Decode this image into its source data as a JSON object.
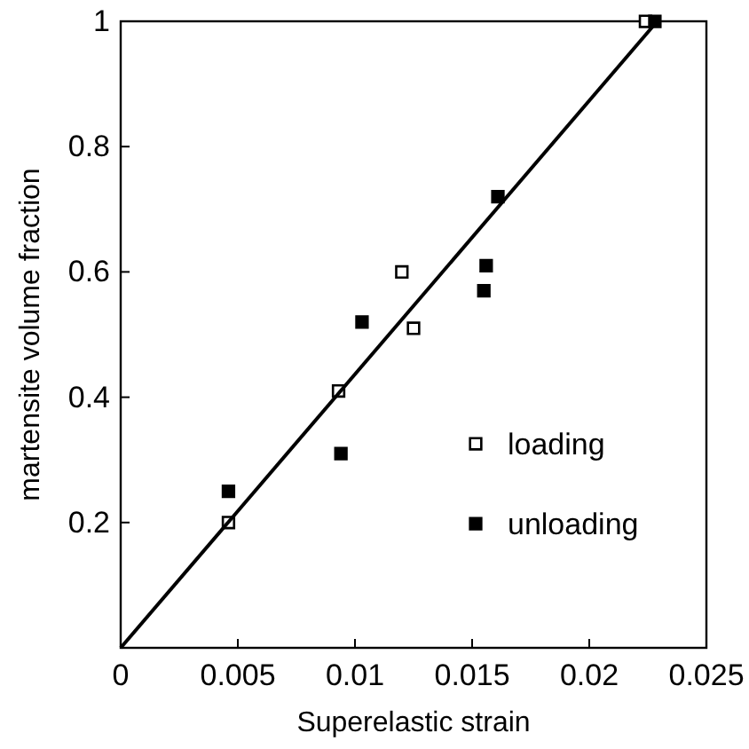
{
  "chart_data": {
    "type": "scatter",
    "xlabel": "Superelastic strain",
    "ylabel": "martensite volume fraction",
    "xlim": [
      0,
      0.025
    ],
    "xticks": [
      0,
      0.005,
      0.01,
      0.015,
      0.02,
      0.025
    ],
    "ylim": [
      0,
      1
    ],
    "yticks": [
      0.2,
      0.4,
      0.6,
      0.8,
      1
    ],
    "grid": false,
    "legend": "bottom right",
    "series": [
      {
        "name": "loading",
        "color": "#000000",
        "marker": "square",
        "x": [
          0.0046,
          0.0093,
          0.012,
          0.0125,
          0.0224
        ],
        "values": [
          0.2,
          0.41,
          0.6,
          0.51,
          1.0
        ]
      },
      {
        "name": "unloading",
        "color": "#000000",
        "marker": "square",
        "x": [
          0.0046,
          0.0094,
          0.0103,
          0.0155,
          0.0156,
          0.0161,
          0.0228
        ],
        "values": [
          0.25,
          0.31,
          0.52,
          0.57,
          0.61,
          0.72,
          1.0
        ]
      },
      {
        "type": "line",
        "color": "#000000",
        "marker": "none",
        "x": [
          0,
          0.0229
        ],
        "values": [
          0,
          1
        ]
      }
    ]
  }
}
